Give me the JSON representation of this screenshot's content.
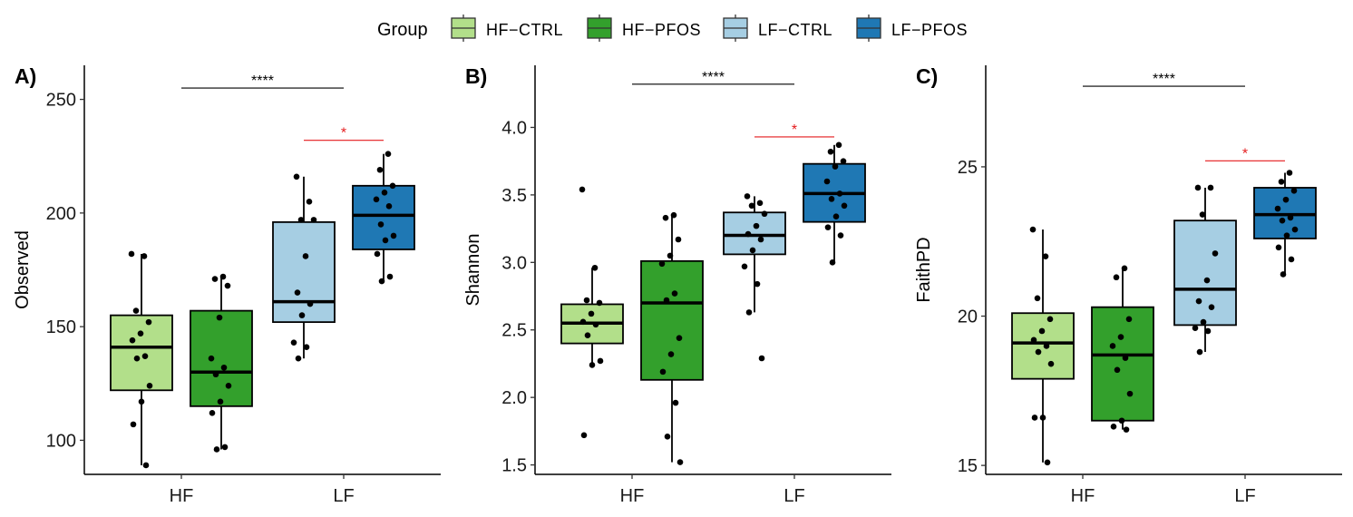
{
  "legend": {
    "title": "Group",
    "position": "top",
    "items": [
      {
        "label": "HF-CTRL",
        "color": "#b2df8a"
      },
      {
        "label": "HF-PFOS",
        "color": "#33a02c"
      },
      {
        "label": "LF-CTRL",
        "color": "#a6cee3"
      },
      {
        "label": "LF-PFOS",
        "color": "#1f78b4"
      }
    ]
  },
  "chart_data": [
    {
      "type": "box",
      "panel_label": "A)",
      "ylabel": "Observed",
      "xlabel": "",
      "categories": [
        "HF",
        "LF"
      ],
      "ylim": [
        85,
        265
      ],
      "yticks": [
        100,
        150,
        200,
        250
      ],
      "grid": false,
      "boxes": [
        {
          "group": "HF-CTRL",
          "category": "HF",
          "whisker_low": 89,
          "q1": 122,
          "median": 141,
          "q3": 155,
          "whisker_high": 182,
          "points": [
            182,
            181,
            157,
            152,
            147,
            144,
            137,
            136,
            124,
            117,
            107,
            89
          ]
        },
        {
          "group": "HF-PFOS",
          "category": "HF",
          "whisker_low": 96,
          "q1": 115,
          "median": 130,
          "q3": 157,
          "whisker_high": 172,
          "points": [
            172,
            171,
            168,
            154,
            136,
            132,
            129,
            124,
            117,
            112,
            97,
            96
          ]
        },
        {
          "group": "LF-CTRL",
          "category": "LF",
          "whisker_low": 136,
          "q1": 152,
          "median": 161,
          "q3": 196,
          "whisker_high": 216,
          "points": [
            216,
            205,
            197,
            197,
            181,
            165,
            160,
            155,
            143,
            141,
            136
          ]
        },
        {
          "group": "LF-PFOS",
          "category": "LF",
          "whisker_low": 170,
          "q1": 184,
          "median": 199,
          "q3": 212,
          "whisker_high": 226,
          "points": [
            226,
            219,
            212,
            209,
            206,
            203,
            195,
            190,
            188,
            182,
            172,
            170
          ]
        }
      ],
      "significance": [
        {
          "label": "****",
          "from": "HF",
          "to": "LF",
          "y": 255,
          "color": "#000000"
        },
        {
          "label": "*",
          "from": "LF-CTRL",
          "to": "LF-PFOS",
          "y": 232,
          "color": "#e41a1c"
        }
      ]
    },
    {
      "type": "box",
      "panel_label": "B)",
      "ylabel": "Shannon",
      "xlabel": "",
      "categories": [
        "HF",
        "LF"
      ],
      "ylim": [
        1.43,
        4.46
      ],
      "yticks": [
        "1.5",
        "2.0",
        "2.5",
        "3.0",
        "3.5",
        "4.0"
      ],
      "grid": false,
      "boxes": [
        {
          "group": "HF-CTRL",
          "category": "HF",
          "whisker_low": 2.25,
          "q1": 2.4,
          "median": 2.55,
          "q3": 2.69,
          "whisker_high": 2.96,
          "points": [
            3.54,
            2.96,
            2.72,
            2.7,
            2.62,
            2.56,
            2.54,
            2.46,
            2.27,
            2.24,
            1.72
          ]
        },
        {
          "group": "HF-PFOS",
          "category": "HF",
          "whisker_low": 1.52,
          "q1": 2.13,
          "median": 2.7,
          "q3": 3.01,
          "whisker_high": 3.35,
          "points": [
            3.35,
            3.33,
            3.17,
            3.05,
            2.99,
            2.77,
            2.72,
            2.44,
            2.32,
            2.19,
            1.96,
            1.71,
            1.52
          ]
        },
        {
          "group": "LF-CTRL",
          "category": "LF",
          "whisker_low": 2.63,
          "q1": 3.06,
          "median": 3.2,
          "q3": 3.37,
          "whisker_high": 3.49,
          "points": [
            3.49,
            3.44,
            3.42,
            3.36,
            3.27,
            3.21,
            3.17,
            3.09,
            2.97,
            2.84,
            2.63,
            2.29
          ]
        },
        {
          "group": "LF-PFOS",
          "category": "LF",
          "whisker_low": 3.0,
          "q1": 3.3,
          "median": 3.51,
          "q3": 3.73,
          "whisker_high": 3.87,
          "points": [
            3.87,
            3.82,
            3.75,
            3.71,
            3.6,
            3.51,
            3.47,
            3.42,
            3.34,
            3.26,
            3.2,
            3.0
          ]
        }
      ],
      "significance": [
        {
          "label": "****",
          "from": "HF",
          "to": "LF",
          "y": 4.32,
          "color": "#000000"
        },
        {
          "label": "*",
          "from": "LF-CTRL",
          "to": "LF-PFOS",
          "y": 3.93,
          "color": "#e41a1c"
        }
      ]
    },
    {
      "type": "box",
      "panel_label": "C)",
      "ylabel": "FaithPD",
      "xlabel": "",
      "categories": [
        "HF",
        "LF"
      ],
      "ylim": [
        14.7,
        28.4
      ],
      "yticks": [
        15,
        20,
        25
      ],
      "grid": false,
      "boxes": [
        {
          "group": "HF-CTRL",
          "category": "HF",
          "whisker_low": 15.1,
          "q1": 17.9,
          "median": 19.1,
          "q3": 20.1,
          "whisker_high": 22.9,
          "points": [
            22.9,
            22.0,
            20.6,
            19.9,
            19.5,
            19.2,
            19.0,
            18.8,
            18.4,
            16.6,
            16.6,
            15.1
          ]
        },
        {
          "group": "HF-PFOS",
          "category": "HF",
          "whisker_low": 16.2,
          "q1": 16.5,
          "median": 18.7,
          "q3": 20.3,
          "whisker_high": 21.6,
          "points": [
            21.6,
            21.3,
            19.9,
            19.3,
            19.0,
            18.6,
            18.2,
            17.4,
            16.5,
            16.3,
            16.2
          ]
        },
        {
          "group": "LF-CTRL",
          "category": "LF",
          "whisker_low": 18.8,
          "q1": 19.7,
          "median": 20.9,
          "q3": 23.2,
          "whisker_high": 24.3,
          "points": [
            24.3,
            24.3,
            23.4,
            22.1,
            21.2,
            20.5,
            20.3,
            19.8,
            19.6,
            19.5,
            18.8
          ]
        },
        {
          "group": "LF-PFOS",
          "category": "LF",
          "whisker_low": 21.4,
          "q1": 22.6,
          "median": 23.4,
          "q3": 24.3,
          "whisker_high": 24.8,
          "points": [
            24.8,
            24.5,
            24.2,
            23.9,
            23.6,
            23.3,
            23.2,
            22.9,
            22.7,
            22.3,
            21.9,
            21.4
          ]
        }
      ],
      "significance": [
        {
          "label": "****",
          "from": "HF",
          "to": "LF",
          "y": 27.7,
          "color": "#000000"
        },
        {
          "label": "*",
          "from": "LF-CTRL",
          "to": "LF-PFOS",
          "y": 25.2,
          "color": "#e41a1c"
        }
      ]
    }
  ]
}
